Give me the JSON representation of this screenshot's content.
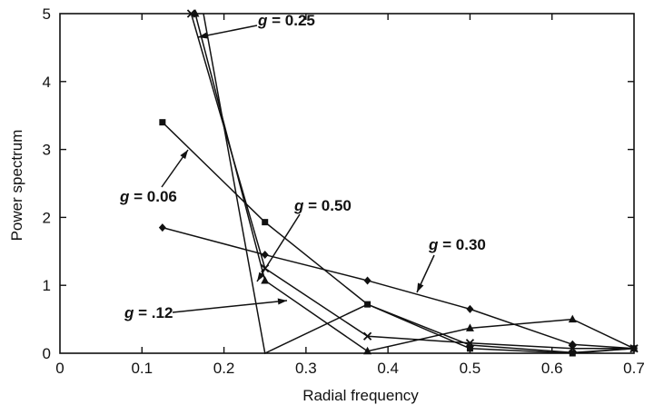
{
  "chart_data": {
    "type": "line",
    "title": "",
    "xlabel": "Radial frequency",
    "ylabel": "Power spectrum",
    "xlim": [
      0,
      0.7
    ],
    "ylim": [
      0,
      5
    ],
    "grid": false,
    "x_ticks": [
      "0",
      "0.1",
      "0.2",
      "0.3",
      "0.4",
      "0.5",
      "0.6",
      "0.7"
    ],
    "y_ticks": [
      "0",
      "1",
      "2",
      "3",
      "4",
      "5"
    ],
    "series": [
      {
        "name": "g = 0.06",
        "marker": "square",
        "x": [
          0.125,
          0.25,
          0.375,
          0.5,
          0.625,
          0.7
        ],
        "y": [
          3.4,
          1.93,
          0.72,
          0.07,
          0.0,
          0.07
        ]
      },
      {
        "name": "g = .12",
        "marker": "triangle",
        "x": [
          0.165,
          0.25,
          0.375,
          0.5,
          0.625,
          0.7
        ],
        "y": [
          5.0,
          1.07,
          0.03,
          0.37,
          0.5,
          0.07
        ]
      },
      {
        "name": "g = 0.25",
        "marker": "none",
        "x": [
          0.175,
          0.25,
          0.375,
          0.5,
          0.625,
          0.7
        ],
        "y": [
          5.0,
          0.0,
          0.72,
          0.12,
          0.01,
          0.07
        ]
      },
      {
        "name": "g = 0.30",
        "marker": "diamond",
        "x": [
          0.125,
          0.25,
          0.375,
          0.5,
          0.625,
          0.7
        ],
        "y": [
          1.85,
          1.45,
          1.07,
          0.65,
          0.13,
          0.07
        ]
      },
      {
        "name": "g = 0.50",
        "marker": "x",
        "x": [
          0.16,
          0.25,
          0.375,
          0.5,
          0.625,
          0.7
        ],
        "y": [
          5.0,
          1.25,
          0.25,
          0.15,
          0.07,
          0.07
        ]
      }
    ],
    "annotations": [
      {
        "g": "g",
        "text": " = 0.25"
      },
      {
        "g": "g",
        "text": " = 0.06"
      },
      {
        "g": "g",
        "text": " = 0.50"
      },
      {
        "g": "g",
        "text": " = 0.30"
      },
      {
        "g": "g",
        "text": " = .12"
      }
    ]
  }
}
